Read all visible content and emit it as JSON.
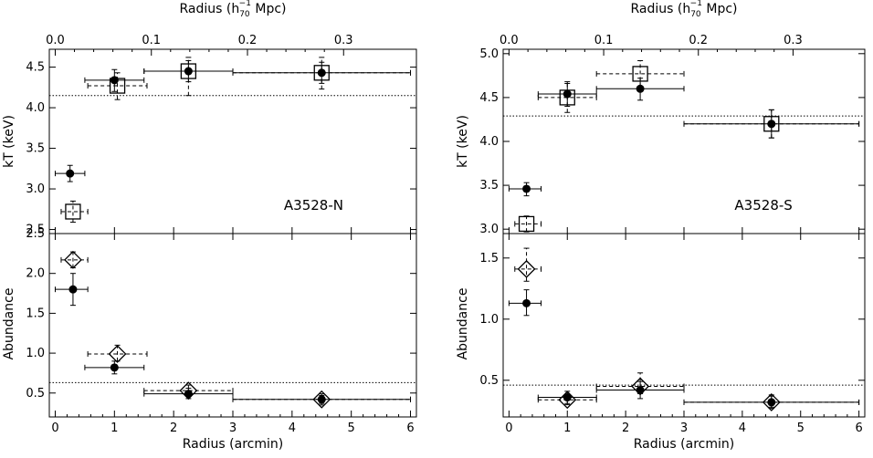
{
  "figure": {
    "top_axis_label": "Radius (h",
    "top_axis_sub": "70",
    "top_axis_sup": "−1",
    "top_axis_tail": " Mpc)",
    "bottom_axis_label": "Radius (arcmin)",
    "kt_label": "kT (keV)",
    "abund_label": "Abundance"
  },
  "chart_data": [
    {
      "name": "A3528-N",
      "type": "scatter",
      "x_range_arcmin": [
        -0.1,
        6.1
      ],
      "top_axis": {
        "ticks": [
          0.0,
          0.1,
          0.2,
          0.3
        ],
        "labels": [
          "0.0",
          "0.1",
          "0.2",
          "0.3"
        ],
        "mpc_per_arcmin": 0.0616
      },
      "bottom_ticks": [
        0,
        1,
        2,
        3,
        4,
        5,
        6
      ],
      "kt": {
        "ylim": [
          2.45,
          4.72
        ],
        "ticks": [
          2.5,
          3.0,
          3.5,
          4.0,
          4.5
        ],
        "tick_labels": [
          "2.5",
          "3.0",
          "3.5",
          "4.0",
          "4.5"
        ],
        "mean": 4.15,
        "series_filled": [
          {
            "x": 0.25,
            "xlo": 0.0,
            "xhi": 0.5,
            "y": 3.19,
            "ylo": 3.09,
            "yhi": 3.29
          },
          {
            "x": 1.0,
            "xlo": 0.5,
            "xhi": 1.5,
            "y": 4.34,
            "ylo": 4.2,
            "yhi": 4.47
          },
          {
            "x": 2.25,
            "xlo": 1.5,
            "xhi": 3.0,
            "y": 4.45,
            "ylo": 4.32,
            "yhi": 4.58
          },
          {
            "x": 4.5,
            "xlo": 3.0,
            "xhi": 6.0,
            "y": 4.43,
            "ylo": 4.3,
            "yhi": 4.56
          }
        ],
        "series_open": [
          {
            "x": 0.3,
            "xlo": 0.1,
            "xhi": 0.55,
            "y": 2.72,
            "ylo": 2.59,
            "yhi": 2.85
          },
          {
            "x": 1.05,
            "xlo": 0.55,
            "xhi": 1.55,
            "y": 4.27,
            "ylo": 4.1,
            "yhi": 4.43
          },
          {
            "x": 2.25,
            "xlo": 1.5,
            "xhi": 3.0,
            "y": 4.45,
            "ylo": 4.15,
            "yhi": 4.62
          },
          {
            "x": 4.5,
            "xlo": 3.0,
            "xhi": 6.0,
            "y": 4.43,
            "ylo": 4.23,
            "yhi": 4.62
          }
        ]
      },
      "abundance": {
        "ylim": [
          0.2,
          2.5
        ],
        "ticks": [
          0.5,
          1.0,
          1.5,
          2.0,
          2.5
        ],
        "tick_labels": [
          "0.5",
          "1.0",
          "1.5",
          "2.0",
          "2.5"
        ],
        "mean": 0.63,
        "series_filled": [
          {
            "x": 0.3,
            "xlo": 0.0,
            "xhi": 0.55,
            "y": 1.8,
            "ylo": 1.6,
            "yhi": 2.0
          },
          {
            "x": 1.0,
            "xlo": 0.5,
            "xhi": 1.5,
            "y": 0.82,
            "ylo": 0.74,
            "yhi": 0.9
          },
          {
            "x": 2.25,
            "xlo": 1.5,
            "xhi": 3.0,
            "y": 0.49,
            "ylo": 0.43,
            "yhi": 0.56
          },
          {
            "x": 4.5,
            "xlo": 3.0,
            "xhi": 6.0,
            "y": 0.42,
            "ylo": 0.35,
            "yhi": 0.49
          }
        ],
        "series_open": [
          {
            "x": 0.3,
            "xlo": 0.1,
            "xhi": 0.55,
            "y": 2.17,
            "ylo": 2.07,
            "yhi": 2.27
          },
          {
            "x": 1.05,
            "xlo": 0.55,
            "xhi": 1.55,
            "y": 0.99,
            "ylo": 0.9,
            "yhi": 1.1
          },
          {
            "x": 2.25,
            "xlo": 1.5,
            "xhi": 3.0,
            "y": 0.53,
            "ylo": 0.47,
            "yhi": 0.6
          },
          {
            "x": 4.5,
            "xlo": 3.0,
            "xhi": 6.0,
            "y": 0.42,
            "ylo": 0.37,
            "yhi": 0.47
          }
        ]
      }
    },
    {
      "name": "A3528-S",
      "type": "scatter",
      "x_range_arcmin": [
        -0.1,
        6.1
      ],
      "top_axis": {
        "ticks": [
          0.0,
          0.1,
          0.2,
          0.3
        ],
        "labels": [
          "0.0",
          "0.1",
          "0.2",
          "0.3"
        ],
        "mpc_per_arcmin": 0.0616
      },
      "bottom_ticks": [
        0,
        1,
        2,
        3,
        4,
        5,
        6
      ],
      "kt": {
        "ylim": [
          2.95,
          5.05
        ],
        "ticks": [
          3.0,
          3.5,
          4.0,
          4.5,
          5.0
        ],
        "tick_labels": [
          "3.0",
          "3.5",
          "4.0",
          "4.5",
          "5.0"
        ],
        "mean": 4.29,
        "series_filled": [
          {
            "x": 0.3,
            "xlo": 0.0,
            "xhi": 0.55,
            "y": 3.46,
            "ylo": 3.38,
            "yhi": 3.53
          },
          {
            "x": 1.0,
            "xlo": 0.5,
            "xhi": 1.5,
            "y": 4.54,
            "ylo": 4.4,
            "yhi": 4.68
          },
          {
            "x": 2.25,
            "xlo": 1.5,
            "xhi": 3.0,
            "y": 4.6,
            "ylo": 4.47,
            "yhi": 4.72
          },
          {
            "x": 4.5,
            "xlo": 3.0,
            "xhi": 6.0,
            "y": 4.2,
            "ylo": 4.04,
            "yhi": 4.36
          }
        ],
        "series_open": [
          {
            "x": 0.3,
            "xlo": 0.1,
            "xhi": 0.55,
            "y": 3.06,
            "ylo": 2.97,
            "yhi": 3.15
          },
          {
            "x": 1.0,
            "xlo": 0.5,
            "xhi": 1.5,
            "y": 4.5,
            "ylo": 4.33,
            "yhi": 4.66
          },
          {
            "x": 2.25,
            "xlo": 1.5,
            "xhi": 3.0,
            "y": 4.77,
            "ylo": 4.62,
            "yhi": 4.92
          },
          {
            "x": 4.5,
            "xlo": 3.0,
            "xhi": 6.0,
            "y": 4.2,
            "ylo": 4.04,
            "yhi": 4.36
          }
        ]
      },
      "abundance": {
        "ylim": [
          0.2,
          1.7
        ],
        "ticks": [
          0.5,
          1.0,
          1.5
        ],
        "tick_labels": [
          "0.5",
          "1.0",
          "1.5"
        ],
        "mean": 0.46,
        "series_filled": [
          {
            "x": 0.3,
            "xlo": 0.0,
            "xhi": 0.55,
            "y": 1.13,
            "ylo": 1.03,
            "yhi": 1.24
          },
          {
            "x": 1.0,
            "xlo": 0.5,
            "xhi": 1.5,
            "y": 0.36,
            "ylo": 0.31,
            "yhi": 0.41
          },
          {
            "x": 2.25,
            "xlo": 1.5,
            "xhi": 3.0,
            "y": 0.42,
            "ylo": 0.35,
            "yhi": 0.49
          },
          {
            "x": 4.5,
            "xlo": 3.0,
            "xhi": 6.0,
            "y": 0.32,
            "ylo": 0.27,
            "yhi": 0.38
          }
        ],
        "series_open": [
          {
            "x": 0.3,
            "xlo": 0.1,
            "xhi": 0.55,
            "y": 1.41,
            "ylo": 1.31,
            "yhi": 1.58
          },
          {
            "x": 1.0,
            "xlo": 0.5,
            "xhi": 1.5,
            "y": 0.34,
            "ylo": 0.3,
            "yhi": 0.38
          },
          {
            "x": 2.25,
            "xlo": 1.5,
            "xhi": 3.0,
            "y": 0.45,
            "ylo": 0.39,
            "yhi": 0.56
          },
          {
            "x": 4.5,
            "xlo": 3.0,
            "xhi": 6.0,
            "y": 0.32,
            "ylo": 0.28,
            "yhi": 0.37
          }
        ]
      }
    }
  ]
}
